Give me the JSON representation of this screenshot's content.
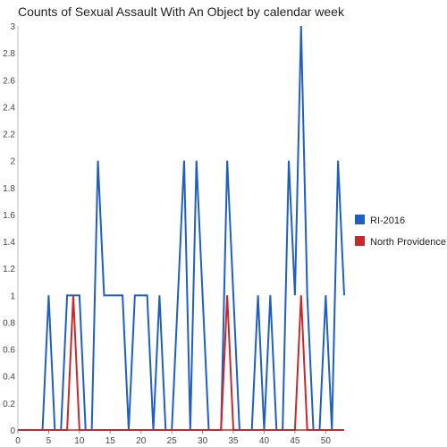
{
  "chart_data": {
    "type": "line",
    "title": "Counts of Sexual Assault With An Object by calendar week",
    "xlabel": "",
    "ylabel": "",
    "xlim": [
      0,
      53
    ],
    "ylim": [
      0,
      3
    ],
    "x_ticks": [
      0,
      5,
      10,
      15,
      20,
      25,
      30,
      35,
      40,
      45,
      50
    ],
    "y_ticks": [
      "0",
      "0.2",
      "0.4",
      "0.6",
      "0.8",
      "1",
      "1.2",
      "1.4",
      "1.6",
      "1.8",
      "2",
      "2.2",
      "2.4",
      "2.6",
      "2.8",
      "3"
    ],
    "grid": false,
    "legend_position": "right",
    "series": [
      {
        "name": "RI-2016",
        "color": "#1f5fc4",
        "points": [
          [
            4,
            0
          ],
          [
            5,
            1
          ],
          [
            6,
            0
          ],
          [
            7,
            0
          ],
          [
            8,
            1
          ],
          [
            9,
            1
          ],
          [
            10,
            1
          ],
          [
            11,
            0
          ],
          [
            12,
            0
          ],
          [
            13,
            2
          ],
          [
            14,
            1
          ],
          [
            15,
            1
          ],
          [
            16,
            1
          ],
          [
            17,
            1
          ],
          [
            18,
            0
          ],
          [
            19,
            1
          ],
          [
            20,
            1
          ],
          [
            21,
            1
          ],
          [
            22,
            0
          ],
          [
            23,
            1
          ],
          [
            24,
            0
          ],
          [
            25,
            0
          ],
          [
            26,
            1
          ],
          [
            27,
            2
          ],
          [
            28,
            0
          ],
          [
            29,
            2
          ],
          [
            30,
            1
          ],
          [
            31,
            0
          ],
          [
            32,
            0
          ],
          [
            33,
            0
          ],
          [
            34,
            2
          ],
          [
            35,
            1
          ],
          [
            36,
            0
          ],
          [
            37,
            0
          ],
          [
            38,
            0
          ],
          [
            39,
            1
          ],
          [
            40,
            0
          ],
          [
            41,
            1
          ],
          [
            42,
            0
          ],
          [
            43,
            0
          ],
          [
            44,
            2
          ],
          [
            45,
            1
          ],
          [
            46,
            3
          ],
          [
            47,
            1
          ],
          [
            48,
            0
          ],
          [
            49,
            0
          ],
          [
            50,
            1
          ],
          [
            51,
            0
          ],
          [
            52,
            2
          ],
          [
            53,
            1
          ]
        ]
      },
      {
        "name": "North Providence",
        "color": "#c8282a",
        "points": [
          [
            0,
            0
          ],
          [
            8,
            0
          ],
          [
            9,
            1
          ],
          [
            10,
            0
          ],
          [
            33,
            0
          ],
          [
            34,
            1
          ],
          [
            35,
            0
          ],
          [
            45,
            0
          ],
          [
            46,
            1
          ],
          [
            47,
            0
          ],
          [
            53,
            0
          ]
        ]
      }
    ]
  }
}
